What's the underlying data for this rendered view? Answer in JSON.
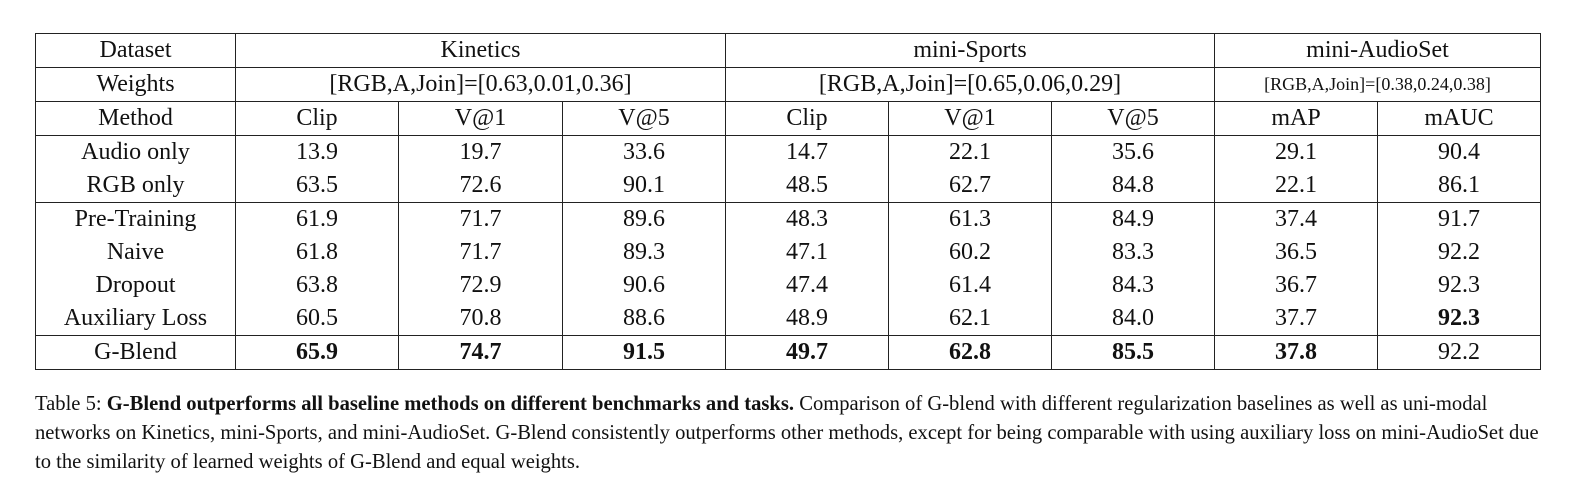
{
  "table": {
    "header": {
      "dataset": "Dataset",
      "groups": [
        "Kinetics",
        "mini-Sports",
        "mini-AudioSet"
      ],
      "weights_label": "Weights",
      "weights": [
        "[RGB,A,Join]=[0.63,0.01,0.36]",
        "[RGB,A,Join]=[0.65,0.06,0.29]",
        "[RGB,A,Join]=[0.38,0.24,0.38]"
      ],
      "method": "Method",
      "metrics": [
        "Clip",
        "V@1",
        "V@5",
        "Clip",
        "V@1",
        "V@5",
        "mAP",
        "mAUC"
      ]
    },
    "row_groups": [
      [
        {
          "method": "Audio only",
          "values": [
            "13.9",
            "19.7",
            "33.6",
            "14.7",
            "22.1",
            "35.6",
            "29.1",
            "90.4"
          ]
        },
        {
          "method": "RGB only",
          "values": [
            "63.5",
            "72.6",
            "90.1",
            "48.5",
            "62.7",
            "84.8",
            "22.1",
            "86.1"
          ]
        }
      ],
      [
        {
          "method": "Pre-Training",
          "values": [
            "61.9",
            "71.7",
            "89.6",
            "48.3",
            "61.3",
            "84.9",
            "37.4",
            "91.7"
          ]
        },
        {
          "method": "Naive",
          "values": [
            "61.8",
            "71.7",
            "89.3",
            "47.1",
            "60.2",
            "83.3",
            "36.5",
            "92.2"
          ]
        },
        {
          "method": "Dropout",
          "values": [
            "63.8",
            "72.9",
            "90.6",
            "47.4",
            "61.4",
            "84.3",
            "36.7",
            "92.3"
          ]
        },
        {
          "method": "Auxiliary Loss",
          "values": [
            "60.5",
            "70.8",
            "88.6",
            "48.9",
            "62.1",
            "84.0",
            "37.7",
            "92.3"
          ],
          "bold": [
            7
          ]
        }
      ],
      [
        {
          "method": "G-Blend",
          "values": [
            "65.9",
            "74.7",
            "91.5",
            "49.7",
            "62.8",
            "85.5",
            "37.8",
            "92.2"
          ],
          "bold": [
            0,
            1,
            2,
            3,
            4,
            5,
            6
          ]
        }
      ]
    ]
  },
  "caption": {
    "label": "Table 5:",
    "title": "G-Blend outperforms all baseline methods on different benchmarks and tasks.",
    "text": "Comparison of G-blend with different regularization baselines as well as uni-modal networks on Kinetics, mini-Sports, and mini-AudioSet. G-Blend consistently outperforms other methods, except for being comparable with using auxiliary loss on mini-AudioSet due to the similarity of learned weights of G-Blend and equal weights."
  }
}
